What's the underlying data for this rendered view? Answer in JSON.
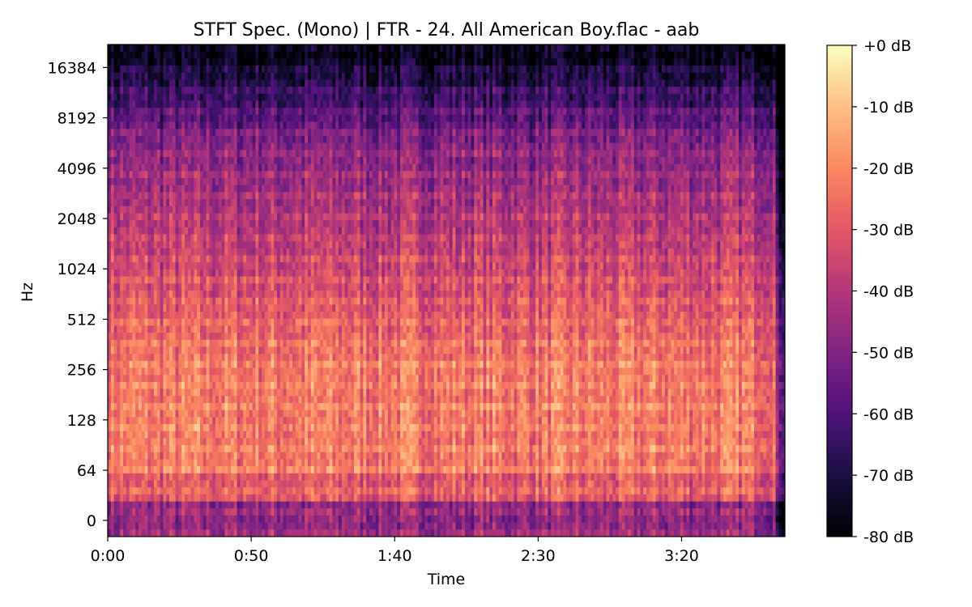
{
  "chart_data": {
    "type": "heatmap",
    "title": "STFT Spec. (Mono) | FTR - 24. All American Boy.flac - aab",
    "xlabel": "Time",
    "ylabel": "Hz",
    "x_ticks": [
      "0:00",
      "0:50",
      "1:40",
      "2:30",
      "3:20"
    ],
    "x_tick_seconds": [
      0,
      50,
      100,
      150,
      200
    ],
    "x_range_seconds": [
      0,
      236
    ],
    "y_scale": "log2",
    "y_ticks": [
      "0",
      "64",
      "128",
      "256",
      "512",
      "1024",
      "2048",
      "4096",
      "8192",
      "16384"
    ],
    "y_tick_hz": [
      0,
      64,
      128,
      256,
      512,
      1024,
      2048,
      4096,
      8192,
      16384
    ],
    "y_range_hz": [
      0,
      22050
    ],
    "colormap": "magma",
    "colorbar": {
      "ticks": [
        "+0 dB",
        "-10 dB",
        "-20 dB",
        "-30 dB",
        "-40 dB",
        "-50 dB",
        "-60 dB",
        "-70 dB",
        "-80 dB"
      ],
      "tick_values_db": [
        0,
        -10,
        -20,
        -30,
        -40,
        -50,
        -60,
        -70,
        -80
      ],
      "range_db": [
        -80,
        0
      ]
    },
    "grid": false
  }
}
